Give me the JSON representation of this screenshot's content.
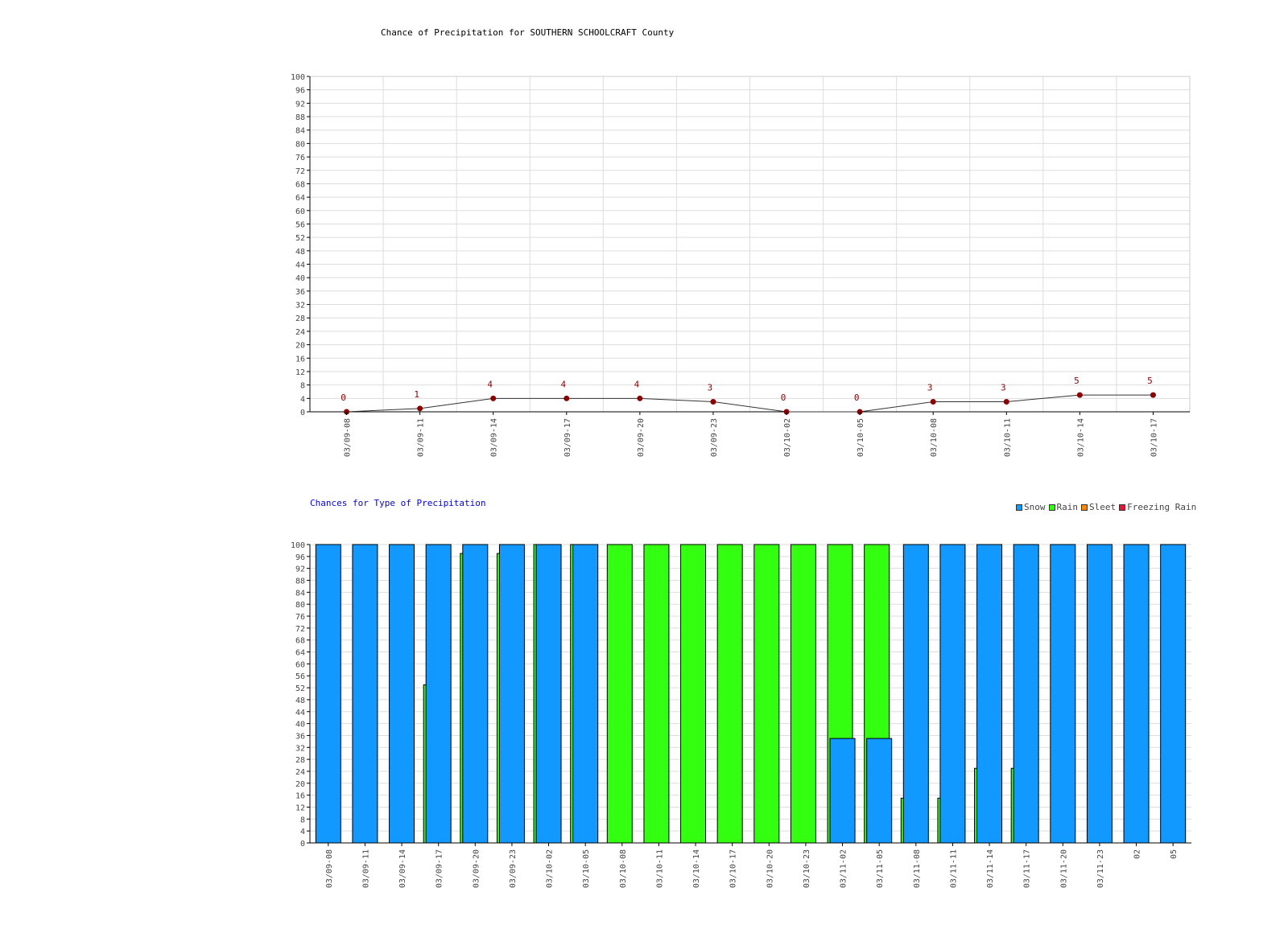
{
  "chart_data": [
    {
      "type": "line",
      "title": "Chance of Precipitation for SOUTHERN SCHOOLCRAFT County",
      "x": [
        "03/09-08",
        "03/09-11",
        "03/09-14",
        "03/09-17",
        "03/09-20",
        "03/09-23",
        "03/10-02",
        "03/10-05",
        "03/10-08",
        "03/10-11",
        "03/10-14",
        "03/10-17"
      ],
      "series": [
        {
          "values": [
            0,
            1,
            4,
            4,
            4,
            3,
            0,
            0,
            3,
            3,
            5,
            5
          ]
        }
      ],
      "ylim": [
        0,
        100
      ],
      "ytick_step": 4,
      "grid": true,
      "colors": {
        "point": "#8b0000",
        "line": "#333333",
        "label": "#8b0000"
      }
    },
    {
      "type": "bar",
      "title": "Chances for Type of Precipitation",
      "categories": [
        "03/09-08",
        "03/09-11",
        "03/09-14",
        "03/09-17",
        "03/09-20",
        "03/09-23",
        "03/10-02",
        "03/10-05",
        "03/10-08",
        "03/10-11",
        "03/10-14",
        "03/10-17",
        "03/10-20",
        "03/10-23",
        "03/11-02",
        "03/11-05",
        "03/11-08",
        "03/11-11",
        "03/11-14",
        "03/11-17",
        "03/11-20",
        "03/11-23",
        "02",
        "05"
      ],
      "series": [
        {
          "name": "Snow",
          "values": [
            100,
            100,
            100,
            100,
            100,
            100,
            100,
            100,
            0,
            0,
            0,
            0,
            0,
            0,
            35,
            35,
            100,
            100,
            100,
            100,
            100,
            100,
            100,
            100
          ],
          "color": "#1199ff"
        },
        {
          "name": "Rain",
          "values": [
            0,
            0,
            0,
            53,
            97,
            97,
            100,
            100,
            100,
            100,
            100,
            100,
            100,
            100,
            100,
            100,
            15,
            15,
            25,
            25,
            0,
            0,
            0,
            0
          ],
          "color": "#33ff11"
        },
        {
          "name": "Sleet",
          "values": [
            0,
            0,
            0,
            0,
            0,
            0,
            0,
            0,
            0,
            0,
            0,
            0,
            0,
            0,
            0,
            0,
            0,
            0,
            0,
            0,
            0,
            0,
            0,
            0
          ],
          "color": "#ff8800"
        },
        {
          "name": "Freezing Rain",
          "values": [
            0,
            0,
            0,
            0,
            0,
            0,
            0,
            0,
            0,
            0,
            0,
            0,
            0,
            0,
            0,
            0,
            0,
            0,
            0,
            0,
            0,
            0,
            0,
            0
          ],
          "color": "#ee1133"
        }
      ],
      "ylim": [
        0,
        100
      ],
      "ytick_step": 4,
      "grid": true,
      "legend_position": "top-right"
    }
  ]
}
